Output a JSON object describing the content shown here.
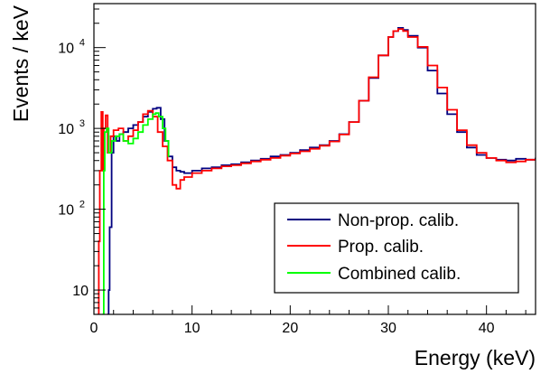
{
  "chart_data": {
    "type": "line",
    "title": "",
    "xlabel": "Energy (keV)",
    "ylabel": "Events / keV",
    "xlim": [
      0,
      45
    ],
    "ylim": [
      5,
      35000
    ],
    "yscale": "log",
    "grid": false,
    "legend_position": "bottom-right",
    "x_ticks": [
      {
        "value": 0,
        "label": "0"
      },
      {
        "value": 10,
        "label": "10"
      },
      {
        "value": 20,
        "label": "20"
      },
      {
        "value": 30,
        "label": "30"
      },
      {
        "value": 40,
        "label": "40"
      }
    ],
    "y_ticks": [
      {
        "value": 10,
        "label": "10",
        "exp": ""
      },
      {
        "value": 100,
        "label": "10",
        "exp": "2"
      },
      {
        "value": 1000,
        "label": "10",
        "exp": "3"
      },
      {
        "value": 10000,
        "label": "10",
        "exp": "4"
      }
    ],
    "series": [
      {
        "name": "Non-prop. calib.",
        "color": "#000080",
        "x": [
          1.4,
          1.5,
          1.6,
          1.8,
          2.0,
          2.3,
          2.6,
          3.0,
          3.5,
          4.0,
          4.5,
          5.0,
          5.5,
          6.0,
          6.4,
          6.8,
          7.2,
          7.6,
          8.0,
          8.4,
          8.8,
          9.2,
          10,
          11,
          12,
          13,
          14,
          15,
          16,
          17,
          18,
          19,
          20,
          21,
          22,
          23,
          24,
          25,
          26,
          27,
          28,
          29,
          30,
          30.5,
          31,
          31.5,
          32,
          33,
          34,
          35,
          36,
          37,
          38,
          39,
          40,
          41,
          42,
          43,
          44,
          45
        ],
        "y": [
          5,
          10,
          60,
          500,
          800,
          700,
          850,
          900,
          1000,
          1100,
          1200,
          1400,
          1600,
          1750,
          1800,
          1300,
          700,
          450,
          330,
          300,
          290,
          280,
          300,
          320,
          330,
          350,
          360,
          380,
          400,
          420,
          450,
          470,
          500,
          540,
          580,
          620,
          700,
          850,
          1200,
          2200,
          4200,
          8000,
          13500,
          16000,
          17500,
          16500,
          14000,
          10000,
          5200,
          2700,
          1500,
          900,
          580,
          470,
          430,
          410,
          400,
          420,
          410,
          430
        ]
      },
      {
        "name": "Prop. calib.",
        "color": "#ff0000",
        "x": [
          0.4,
          0.5,
          0.6,
          0.75,
          0.9,
          1.0,
          1.2,
          1.4,
          1.7,
          2.0,
          2.5,
          3.0,
          3.5,
          4.0,
          4.5,
          5.0,
          5.5,
          6.0,
          6.5,
          7.0,
          7.5,
          8.0,
          8.4,
          8.8,
          9.2,
          10,
          11,
          12,
          13,
          14,
          15,
          16,
          17,
          18,
          19,
          20,
          21,
          22,
          23,
          24,
          25,
          26,
          27,
          28,
          29,
          30,
          30.5,
          31,
          31.5,
          32,
          33,
          34,
          35,
          36,
          37,
          38,
          39,
          40,
          41,
          42,
          43,
          44,
          45
        ],
        "y": [
          5,
          40,
          300,
          1600,
          300,
          1000,
          1450,
          500,
          800,
          950,
          1000,
          700,
          800,
          950,
          1200,
          1500,
          1650,
          1400,
          900,
          600,
          400,
          200,
          180,
          230,
          250,
          280,
          300,
          320,
          340,
          350,
          370,
          390,
          410,
          430,
          460,
          490,
          520,
          560,
          610,
          690,
          840,
          1200,
          2200,
          4300,
          8000,
          13500,
          16000,
          17000,
          16000,
          13500,
          10200,
          6000,
          3200,
          1700,
          950,
          620,
          500,
          430,
          400,
          380,
          390,
          410,
          420
        ]
      },
      {
        "name": "Combined calib.",
        "color": "#00ff00",
        "x": [
          0.9,
          1.0,
          1.1,
          1.3,
          1.5,
          1.8,
          2.2,
          2.6,
          3.0,
          3.5,
          4.0,
          4.5,
          5.0,
          5.5,
          6.0,
          6.3,
          6.6,
          7.0,
          7.3,
          7.6
        ],
        "y": [
          5,
          300,
          900,
          1000,
          500,
          700,
          800,
          850,
          700,
          650,
          750,
          900,
          1100,
          1300,
          1500,
          1550,
          1400,
          1000,
          700,
          450
        ]
      }
    ]
  }
}
